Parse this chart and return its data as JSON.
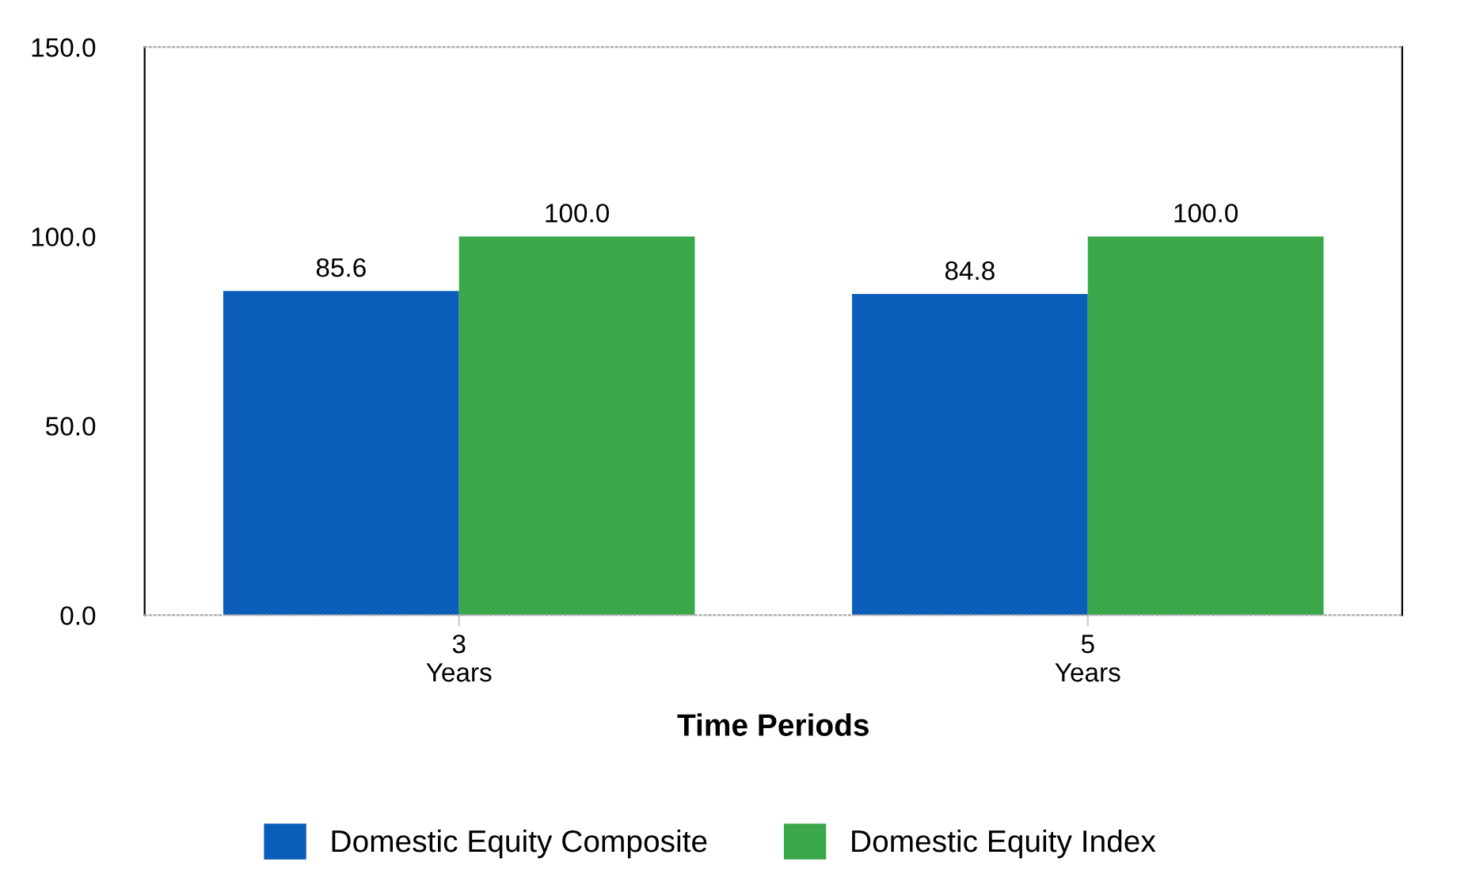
{
  "chart_data": {
    "type": "bar",
    "categories": [
      "3\nYears",
      "5\nYears"
    ],
    "xlabel": "Time Periods",
    "series": [
      {
        "name": "Domestic Equity Composite",
        "color": "#0a5db8",
        "values": [
          85.6,
          84.8
        ],
        "value_labels": [
          "85.6",
          "84.8"
        ]
      },
      {
        "name": "Domestic Equity Index",
        "color": "#3aa84a",
        "values": [
          100,
          100
        ],
        "value_labels": [
          "100.0",
          "100.0"
        ]
      }
    ],
    "ylim": [
      0,
      150
    ],
    "yticks": [
      {
        "value": 0,
        "label": "0.0"
      },
      {
        "value": 50,
        "label": "50.0"
      },
      {
        "value": 100,
        "label": "100.0"
      },
      {
        "value": 150,
        "label": "150.0"
      }
    ],
    "legend": "bottom",
    "grid": false
  }
}
